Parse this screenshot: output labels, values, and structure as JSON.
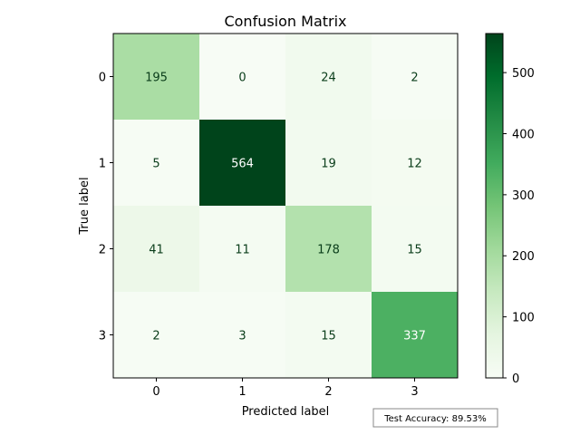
{
  "chart_data": {
    "type": "heatmap",
    "title": "Confusion Matrix",
    "xlabel": "Predicted label",
    "ylabel": "True label",
    "x_categories": [
      "0",
      "1",
      "2",
      "3"
    ],
    "y_categories": [
      "0",
      "1",
      "2",
      "3"
    ],
    "matrix": [
      [
        195,
        0,
        24,
        2
      ],
      [
        5,
        564,
        19,
        12
      ],
      [
        41,
        11,
        178,
        15
      ],
      [
        2,
        3,
        15,
        337
      ]
    ],
    "colormap": "Greens",
    "color_range": [
      0,
      564
    ],
    "colorbar_ticks": [
      0,
      100,
      200,
      300,
      400,
      500
    ],
    "annotation": "Test Accuracy: 89.53%"
  }
}
